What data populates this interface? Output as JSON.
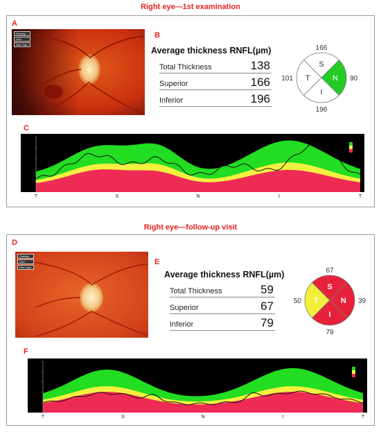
{
  "first": {
    "title": "Right eye—1st examination",
    "labels": {
      "a": "A",
      "b": "B",
      "c": "C"
    },
    "overlay_buttons": [
      "Overlay",
      "Grid",
      "Disc Topo"
    ],
    "avg_title": "Average thickness RNFL(µm)",
    "rows": [
      {
        "label": "Total Thickness",
        "value": "138"
      },
      {
        "label": "Superior",
        "value": "166"
      },
      {
        "label": "Inferior",
        "value": "196"
      }
    ],
    "quadrants": {
      "S": {
        "letter": "S",
        "value": "166",
        "color": "#ffffff"
      },
      "N": {
        "letter": "N",
        "value": "90",
        "color": "#22cc22"
      },
      "I": {
        "letter": "I",
        "value": "196",
        "color": "#ffffff"
      },
      "T": {
        "letter": "T",
        "value": "101",
        "color": "#ffffff"
      }
    },
    "axis_ticks": [
      "T",
      "S",
      "N",
      "I",
      "T"
    ]
  },
  "followup": {
    "title": "Right eye—follow-up visit",
    "labels": {
      "a": "D",
      "b": "E",
      "c": "F"
    },
    "overlay_buttons": [
      "Overlay",
      "Grid",
      "Disc Topo"
    ],
    "avg_title": "Average thickness RNFL(µm)",
    "rows": [
      {
        "label": "Total Thickness",
        "value": "59"
      },
      {
        "label": "Superior",
        "value": "67"
      },
      {
        "label": "Inferior",
        "value": "79"
      }
    ],
    "quadrants": {
      "S": {
        "letter": "S",
        "value": "67",
        "color": "#e8213a"
      },
      "N": {
        "letter": "N",
        "value": "39",
        "color": "#e8213a"
      },
      "I": {
        "letter": "I",
        "value": "79",
        "color": "#e8213a"
      },
      "T": {
        "letter": "T",
        "value": "50",
        "color": "#f2ee3a"
      }
    },
    "axis_ticks": [
      "T",
      "S",
      "N",
      "I",
      "T"
    ]
  },
  "colors": {
    "red": "#e8211f",
    "green": "#22dd22",
    "yellow": "#f4f040",
    "pink": "#ee2b55"
  }
}
